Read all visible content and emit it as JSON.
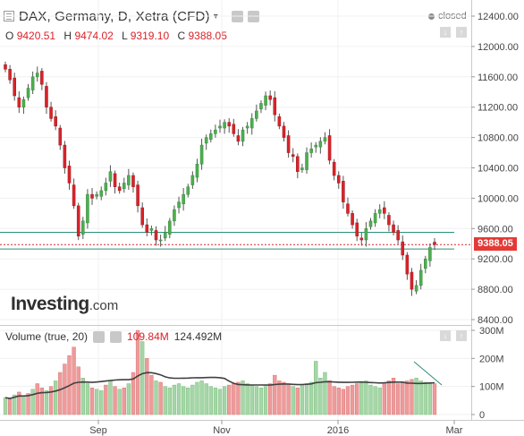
{
  "header": {
    "symbol_title": "DAX, Germany, D, Xetra (CFD)",
    "caret": "▾",
    "status": "closed"
  },
  "ohlc": {
    "o_label": "O",
    "o_value": "9420.51",
    "h_label": "H",
    "h_value": "9474.02",
    "l_label": "L",
    "l_value": "9319.10",
    "c_label": "C",
    "c_value": "9388.05"
  },
  "price_axis": {
    "ticks": [
      "12400.00",
      "12000.00",
      "11600.00",
      "11200.00",
      "10800.00",
      "10400.00",
      "10000.00",
      "9600.00",
      "9200.00",
      "8800.00",
      "8400.00"
    ],
    "last_price_label": "9388.05"
  },
  "volume": {
    "title": "Volume (true, 20)",
    "current_volume": "109.84M",
    "ma_volume": "124.492M",
    "ticks": [
      "300M",
      "200M",
      "100M",
      "0"
    ]
  },
  "time_axis": {
    "ticks": [
      "Sep",
      "Nov",
      "2016",
      "Mar"
    ]
  },
  "logo": {
    "brand": "Investing",
    "suffix": ".com"
  },
  "colors": {
    "up": "#4caf50",
    "down": "#d8232a",
    "volume_up": "#a5d6a7",
    "volume_down": "#ef9a9a",
    "support_line": "#2a8f7a",
    "trend_line": "#2a8f7a",
    "ma_line": "#404040"
  },
  "chart_data": [
    {
      "type": "candlestick",
      "title": "DAX, Germany, D, Xetra (CFD)",
      "ylim": [
        8400,
        12400
      ],
      "x_ticks": [
        "Sep",
        "Nov",
        "2016",
        "Mar"
      ],
      "last": {
        "open": 9420.51,
        "high": 9474.02,
        "low": 9319.1,
        "close": 9388.05
      },
      "close_series": [
        11700,
        11560,
        11350,
        11200,
        11300,
        11450,
        11600,
        11650,
        11500,
        11200,
        11050,
        10950,
        10700,
        10400,
        10200,
        9900,
        9500,
        9700,
        10050,
        10000,
        10050,
        10100,
        10200,
        10350,
        10150,
        10100,
        10200,
        10300,
        10150,
        9900,
        9650,
        9550,
        9600,
        9450,
        9450,
        9550,
        9700,
        9850,
        9950,
        10050,
        10150,
        10300,
        10450,
        10700,
        10800,
        10850,
        10900,
        10950,
        11000,
        10950,
        10850,
        10750,
        10900,
        10950,
        11050,
        11150,
        11250,
        11350,
        11300,
        11100,
        10950,
        10800,
        10600,
        10550,
        10350,
        10400,
        10600,
        10650,
        10700,
        10750,
        10800,
        10500,
        10300,
        10200,
        9950,
        9800,
        9650,
        9500,
        9450,
        9600,
        9700,
        9800,
        9850,
        9800,
        9650,
        9550,
        9450,
        9250,
        9000,
        8800,
        8850,
        9050,
        9200,
        9350,
        9388
      ]
    },
    {
      "type": "bar",
      "title": "Volume (true, 20)",
      "ylim": [
        0,
        300
      ],
      "y_unit": "M",
      "values": [
        60,
        55,
        70,
        80,
        65,
        75,
        90,
        110,
        95,
        85,
        100,
        120,
        150,
        180,
        210,
        240,
        170,
        130,
        110,
        95,
        90,
        85,
        105,
        120,
        100,
        90,
        95,
        110,
        150,
        300,
        260,
        200,
        140,
        120,
        115,
        100,
        95,
        105,
        110,
        100,
        95,
        105,
        115,
        120,
        110,
        100,
        95,
        90,
        100,
        105,
        110,
        115,
        120,
        110,
        105,
        100,
        95,
        100,
        110,
        140,
        120,
        115,
        110,
        100,
        95,
        105,
        110,
        115,
        190,
        130,
        150,
        120,
        100,
        95,
        90,
        100,
        105,
        110,
        115,
        120,
        105,
        100,
        95,
        110,
        120,
        130,
        110,
        115,
        120,
        125,
        130,
        120,
        115,
        110,
        110
      ],
      "up_flags": [
        1,
        0,
        1,
        0,
        1,
        0,
        1,
        0,
        0,
        1,
        0,
        1,
        0,
        0,
        0,
        0,
        0,
        1,
        1,
        0,
        1,
        1,
        0,
        1,
        0,
        1,
        0,
        1,
        0,
        0,
        1,
        0,
        0,
        1,
        0,
        1,
        1,
        1,
        1,
        1,
        1,
        1,
        1,
        1,
        1,
        1,
        1,
        1,
        1,
        0,
        0,
        0,
        1,
        1,
        1,
        1,
        1,
        1,
        0,
        0,
        0,
        0,
        0,
        1,
        0,
        1,
        1,
        1,
        1,
        1,
        1,
        0,
        0,
        0,
        0,
        0,
        0,
        0,
        1,
        1,
        1,
        1,
        1,
        0,
        0,
        0,
        0,
        0,
        0,
        0,
        1,
        1,
        1,
        1,
        0
      ],
      "ma_period": 20,
      "last_volume": "109.84M",
      "last_ma": "124.492M"
    }
  ]
}
